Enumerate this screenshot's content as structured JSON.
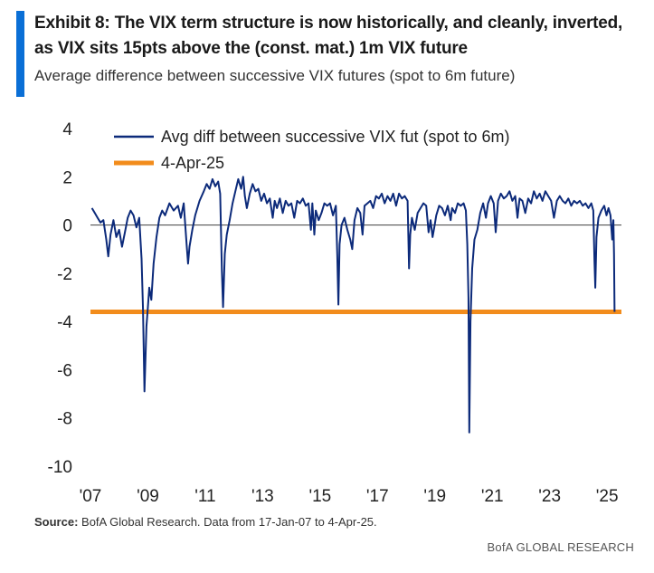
{
  "header": {
    "title": "Exhibit 8: The VIX term structure is now historically, and cleanly, inverted, as VIX sits 15pts above the (const. mat.) 1m VIX future",
    "subtitle": "Average difference between successive VIX futures (spot to 6m future)"
  },
  "footer": {
    "source_label": "Source:",
    "source_text": "BofA Global Research. Data from 17-Jan-07 to 4-Apr-25.",
    "brand": "BofA GLOBAL RESEARCH"
  },
  "colors": {
    "accent": "#0a6fd6",
    "series": "#0c2a7a",
    "reference": "#f28c1c",
    "zero_line": "#555555"
  },
  "chart_data": {
    "type": "line",
    "xlim": [
      2007.0,
      2025.5
    ],
    "ylim": [
      -10,
      4
    ],
    "x_ticks": [
      {
        "value": 2007,
        "label": "'07"
      },
      {
        "value": 2009,
        "label": "'09"
      },
      {
        "value": 2011,
        "label": "'11"
      },
      {
        "value": 2013,
        "label": "'13"
      },
      {
        "value": 2015,
        "label": "'15"
      },
      {
        "value": 2017,
        "label": "'17"
      },
      {
        "value": 2019,
        "label": "'19"
      },
      {
        "value": 2021,
        "label": "'21"
      },
      {
        "value": 2023,
        "label": "'23"
      },
      {
        "value": 2025,
        "label": "'25"
      }
    ],
    "y_ticks": [
      {
        "value": 4,
        "label": "4"
      },
      {
        "value": 2,
        "label": "2"
      },
      {
        "value": 0,
        "label": "0"
      },
      {
        "value": -2,
        "label": "-2"
      },
      {
        "value": -4,
        "label": "-4"
      },
      {
        "value": -6,
        "label": "-6"
      },
      {
        "value": -8,
        "label": "-8"
      },
      {
        "value": -10,
        "label": "-10"
      }
    ],
    "legend_position": "top-left",
    "grid": false,
    "series": [
      {
        "name": "Avg diff between successive VIX fut (spot to 6m)",
        "points": [
          [
            2007.05,
            0.7
          ],
          [
            2007.15,
            0.5
          ],
          [
            2007.25,
            0.3
          ],
          [
            2007.35,
            0.1
          ],
          [
            2007.45,
            0.2
          ],
          [
            2007.55,
            -0.6
          ],
          [
            2007.62,
            -1.3
          ],
          [
            2007.7,
            -0.4
          ],
          [
            2007.8,
            0.2
          ],
          [
            2007.9,
            -0.5
          ],
          [
            2008.0,
            -0.2
          ],
          [
            2008.1,
            -0.9
          ],
          [
            2008.2,
            -0.3
          ],
          [
            2008.3,
            0.3
          ],
          [
            2008.4,
            0.6
          ],
          [
            2008.5,
            0.4
          ],
          [
            2008.6,
            -0.1
          ],
          [
            2008.7,
            0.3
          ],
          [
            2008.78,
            -1.4
          ],
          [
            2008.83,
            -3.5
          ],
          [
            2008.88,
            -6.9
          ],
          [
            2008.95,
            -4.2
          ],
          [
            2009.0,
            -3.4
          ],
          [
            2009.05,
            -2.6
          ],
          [
            2009.12,
            -3.1
          ],
          [
            2009.2,
            -1.6
          ],
          [
            2009.3,
            -0.5
          ],
          [
            2009.4,
            0.3
          ],
          [
            2009.5,
            0.6
          ],
          [
            2009.6,
            0.4
          ],
          [
            2009.75,
            0.9
          ],
          [
            2009.9,
            0.6
          ],
          [
            2010.05,
            0.8
          ],
          [
            2010.15,
            0.3
          ],
          [
            2010.25,
            0.9
          ],
          [
            2010.35,
            -0.8
          ],
          [
            2010.4,
            -1.6
          ],
          [
            2010.45,
            -0.9
          ],
          [
            2010.55,
            -0.2
          ],
          [
            2010.65,
            0.4
          ],
          [
            2010.8,
            1.0
          ],
          [
            2010.95,
            1.4
          ],
          [
            2011.05,
            1.7
          ],
          [
            2011.15,
            1.5
          ],
          [
            2011.25,
            1.9
          ],
          [
            2011.35,
            1.6
          ],
          [
            2011.45,
            1.8
          ],
          [
            2011.52,
            1.3
          ],
          [
            2011.58,
            -1.9
          ],
          [
            2011.62,
            -3.4
          ],
          [
            2011.68,
            -1.2
          ],
          [
            2011.75,
            -0.4
          ],
          [
            2011.85,
            0.2
          ],
          [
            2011.95,
            0.9
          ],
          [
            2012.05,
            1.4
          ],
          [
            2012.15,
            1.9
          ],
          [
            2012.25,
            1.5
          ],
          [
            2012.32,
            2.0
          ],
          [
            2012.38,
            1.2
          ],
          [
            2012.45,
            0.7
          ],
          [
            2012.55,
            1.3
          ],
          [
            2012.65,
            1.7
          ],
          [
            2012.75,
            1.4
          ],
          [
            2012.85,
            1.5
          ],
          [
            2012.95,
            1.0
          ],
          [
            2013.05,
            1.3
          ],
          [
            2013.15,
            0.9
          ],
          [
            2013.25,
            1.1
          ],
          [
            2013.35,
            0.3
          ],
          [
            2013.42,
            1.0
          ],
          [
            2013.5,
            0.7
          ],
          [
            2013.6,
            1.1
          ],
          [
            2013.7,
            0.5
          ],
          [
            2013.8,
            1.0
          ],
          [
            2013.9,
            0.8
          ],
          [
            2014.0,
            0.9
          ],
          [
            2014.1,
            0.3
          ],
          [
            2014.2,
            1.0
          ],
          [
            2014.3,
            0.9
          ],
          [
            2014.4,
            1.1
          ],
          [
            2014.5,
            0.8
          ],
          [
            2014.6,
            0.9
          ],
          [
            2014.68,
            -0.2
          ],
          [
            2014.73,
            0.9
          ],
          [
            2014.8,
            -0.4
          ],
          [
            2014.85,
            0.6
          ],
          [
            2014.95,
            0.2
          ],
          [
            2015.05,
            0.5
          ],
          [
            2015.15,
            0.9
          ],
          [
            2015.25,
            0.8
          ],
          [
            2015.35,
            0.9
          ],
          [
            2015.45,
            0.4
          ],
          [
            2015.55,
            0.8
          ],
          [
            2015.6,
            -1.3
          ],
          [
            2015.64,
            -3.3
          ],
          [
            2015.68,
            -0.8
          ],
          [
            2015.75,
            0.0
          ],
          [
            2015.85,
            0.3
          ],
          [
            2015.95,
            -0.2
          ],
          [
            2016.05,
            -0.6
          ],
          [
            2016.12,
            -1.0
          ],
          [
            2016.2,
            0.2
          ],
          [
            2016.3,
            0.7
          ],
          [
            2016.4,
            0.5
          ],
          [
            2016.48,
            -0.4
          ],
          [
            2016.55,
            0.8
          ],
          [
            2016.65,
            0.9
          ],
          [
            2016.75,
            1.0
          ],
          [
            2016.85,
            0.7
          ],
          [
            2016.95,
            1.2
          ],
          [
            2017.05,
            1.1
          ],
          [
            2017.15,
            1.3
          ],
          [
            2017.25,
            0.9
          ],
          [
            2017.35,
            1.2
          ],
          [
            2017.45,
            1.0
          ],
          [
            2017.55,
            1.3
          ],
          [
            2017.65,
            0.8
          ],
          [
            2017.75,
            1.3
          ],
          [
            2017.85,
            1.1
          ],
          [
            2017.95,
            1.2
          ],
          [
            2018.05,
            1.0
          ],
          [
            2018.1,
            -1.8
          ],
          [
            2018.14,
            -0.4
          ],
          [
            2018.2,
            0.3
          ],
          [
            2018.3,
            -0.2
          ],
          [
            2018.4,
            0.5
          ],
          [
            2018.5,
            0.7
          ],
          [
            2018.6,
            0.9
          ],
          [
            2018.7,
            0.8
          ],
          [
            2018.78,
            -0.3
          ],
          [
            2018.85,
            0.2
          ],
          [
            2018.92,
            -0.5
          ],
          [
            2018.98,
            -0.1
          ],
          [
            2019.05,
            0.4
          ],
          [
            2019.15,
            0.8
          ],
          [
            2019.25,
            0.7
          ],
          [
            2019.35,
            0.4
          ],
          [
            2019.45,
            0.8
          ],
          [
            2019.55,
            0.2
          ],
          [
            2019.6,
            0.7
          ],
          [
            2019.7,
            0.5
          ],
          [
            2019.8,
            0.9
          ],
          [
            2019.9,
            0.8
          ],
          [
            2020.0,
            0.9
          ],
          [
            2020.08,
            0.6
          ],
          [
            2020.13,
            -0.8
          ],
          [
            2020.17,
            -3.0
          ],
          [
            2020.2,
            -8.6
          ],
          [
            2020.24,
            -4.0
          ],
          [
            2020.3,
            -1.8
          ],
          [
            2020.38,
            -0.6
          ],
          [
            2020.48,
            -0.2
          ],
          [
            2020.58,
            0.5
          ],
          [
            2020.68,
            0.9
          ],
          [
            2020.78,
            0.3
          ],
          [
            2020.85,
            0.9
          ],
          [
            2020.95,
            1.2
          ],
          [
            2021.05,
            0.9
          ],
          [
            2021.12,
            -0.3
          ],
          [
            2021.2,
            1.0
          ],
          [
            2021.3,
            1.3
          ],
          [
            2021.4,
            1.1
          ],
          [
            2021.5,
            1.2
          ],
          [
            2021.6,
            1.4
          ],
          [
            2021.7,
            1.0
          ],
          [
            2021.8,
            1.2
          ],
          [
            2021.88,
            0.3
          ],
          [
            2021.95,
            1.1
          ],
          [
            2022.05,
            1.0
          ],
          [
            2022.15,
            0.5
          ],
          [
            2022.25,
            1.1
          ],
          [
            2022.35,
            0.9
          ],
          [
            2022.45,
            1.4
          ],
          [
            2022.55,
            1.1
          ],
          [
            2022.65,
            1.3
          ],
          [
            2022.75,
            1.0
          ],
          [
            2022.85,
            1.4
          ],
          [
            2022.95,
            1.2
          ],
          [
            2023.05,
            1.0
          ],
          [
            2023.15,
            0.3
          ],
          [
            2023.25,
            1.0
          ],
          [
            2023.35,
            1.2
          ],
          [
            2023.45,
            1.0
          ],
          [
            2023.55,
            0.9
          ],
          [
            2023.65,
            1.1
          ],
          [
            2023.75,
            0.8
          ],
          [
            2023.85,
            1.0
          ],
          [
            2023.95,
            0.9
          ],
          [
            2024.05,
            1.0
          ],
          [
            2024.15,
            0.8
          ],
          [
            2024.25,
            0.9
          ],
          [
            2024.35,
            0.7
          ],
          [
            2024.45,
            0.9
          ],
          [
            2024.52,
            0.6
          ],
          [
            2024.56,
            -1.5
          ],
          [
            2024.59,
            -2.6
          ],
          [
            2024.63,
            -0.5
          ],
          [
            2024.7,
            0.3
          ],
          [
            2024.8,
            0.6
          ],
          [
            2024.9,
            0.8
          ],
          [
            2024.98,
            0.4
          ],
          [
            2025.05,
            0.7
          ],
          [
            2025.12,
            0.4
          ],
          [
            2025.18,
            -0.6
          ],
          [
            2025.22,
            0.2
          ],
          [
            2025.24,
            -1.2
          ],
          [
            2025.26,
            -3.6
          ]
        ]
      },
      {
        "name": "4-Apr-25",
        "constant": -3.6
      }
    ]
  }
}
